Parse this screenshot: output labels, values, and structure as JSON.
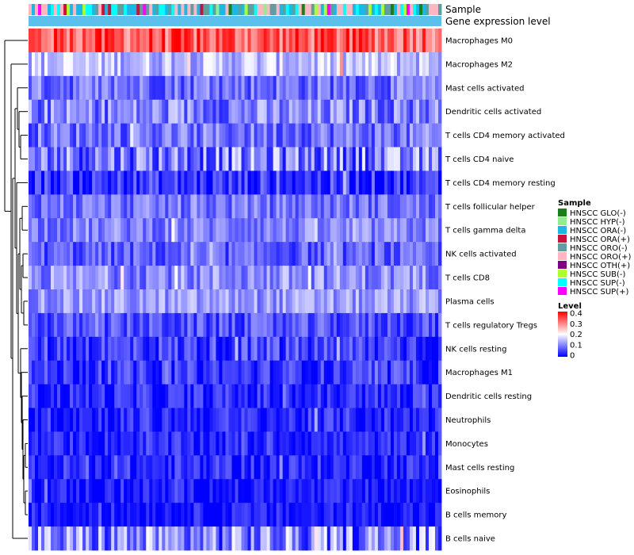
{
  "chart_data": {
    "type": "heatmap",
    "annotation_labels": {
      "sample": "Sample",
      "expression": "Gene expression level"
    },
    "rows": [
      {
        "label": "Macrophages M0",
        "mean": 0.33,
        "spread": 0.08
      },
      {
        "label": "Macrophages M2",
        "mean": 0.15,
        "spread": 0.06
      },
      {
        "label": "Mast cells activated",
        "mean": 0.09,
        "spread": 0.06
      },
      {
        "label": "Dendritic cells activated",
        "mean": 0.1,
        "spread": 0.07
      },
      {
        "label": "T cells CD4 memory activated",
        "mean": 0.09,
        "spread": 0.06
      },
      {
        "label": "T cells CD4 naive",
        "mean": 0.1,
        "spread": 0.09
      },
      {
        "label": "T cells CD4 memory resting",
        "mean": 0.04,
        "spread": 0.06
      },
      {
        "label": "T cells follicular helper",
        "mean": 0.09,
        "spread": 0.05
      },
      {
        "label": "T cells gamma delta",
        "mean": 0.1,
        "spread": 0.05
      },
      {
        "label": "NK cells activated",
        "mean": 0.07,
        "spread": 0.05
      },
      {
        "label": "T cells CD8",
        "mean": 0.11,
        "spread": 0.06
      },
      {
        "label": "Plasma cells",
        "mean": 0.12,
        "spread": 0.05
      },
      {
        "label": "T cells regulatory  Tregs",
        "mean": 0.06,
        "spread": 0.05
      },
      {
        "label": "NK cells resting",
        "mean": 0.05,
        "spread": 0.06
      },
      {
        "label": "Macrophages M1",
        "mean": 0.04,
        "spread": 0.05
      },
      {
        "label": "Dendritic cells resting",
        "mean": 0.03,
        "spread": 0.05
      },
      {
        "label": "Neutrophils",
        "mean": 0.03,
        "spread": 0.05
      },
      {
        "label": "Monocytes",
        "mean": 0.03,
        "spread": 0.04
      },
      {
        "label": "Mast cells resting",
        "mean": 0.03,
        "spread": 0.05
      },
      {
        "label": "Eosinophils",
        "mean": 0.02,
        "spread": 0.04
      },
      {
        "label": "B cells memory",
        "mean": 0.02,
        "spread": 0.04
      },
      {
        "label": "B cells naive",
        "mean": 0.1,
        "spread": 0.1
      }
    ],
    "n_samples": 130,
    "sample_legend": {
      "title": "Sample",
      "items": [
        {
          "label": "HNSCC GLO(-)",
          "color": "#1a7f1a"
        },
        {
          "label": "HNSCC HYP(-)",
          "color": "#90ee90"
        },
        {
          "label": "HNSCC ORA(-)",
          "color": "#1bb8e6"
        },
        {
          "label": "HNSCC ORA(+)",
          "color": "#c8143c"
        },
        {
          "label": "HNSCC ORO(-)",
          "color": "#5f9ea0"
        },
        {
          "label": "HNSCC ORO(+)",
          "color": "#ffb6c1"
        },
        {
          "label": "HNSCC OTH(+)",
          "color": "#800080"
        },
        {
          "label": "HNSCC SUB(-)",
          "color": "#adff2f"
        },
        {
          "label": "HNSCC SUP(-)",
          "color": "#00ffff"
        },
        {
          "label": "HNSCC SUP(+)",
          "color": "#ff00ff"
        }
      ]
    },
    "level_legend": {
      "title": "Level",
      "ticks": [
        "0.4",
        "0.3",
        "0.2",
        "0.1",
        "0"
      ],
      "range": [
        0,
        0.4
      ],
      "colors": [
        "#0000ff",
        "#ffffff",
        "#ff0000"
      ]
    },
    "expression_bar_color": "#5bc0eb"
  }
}
